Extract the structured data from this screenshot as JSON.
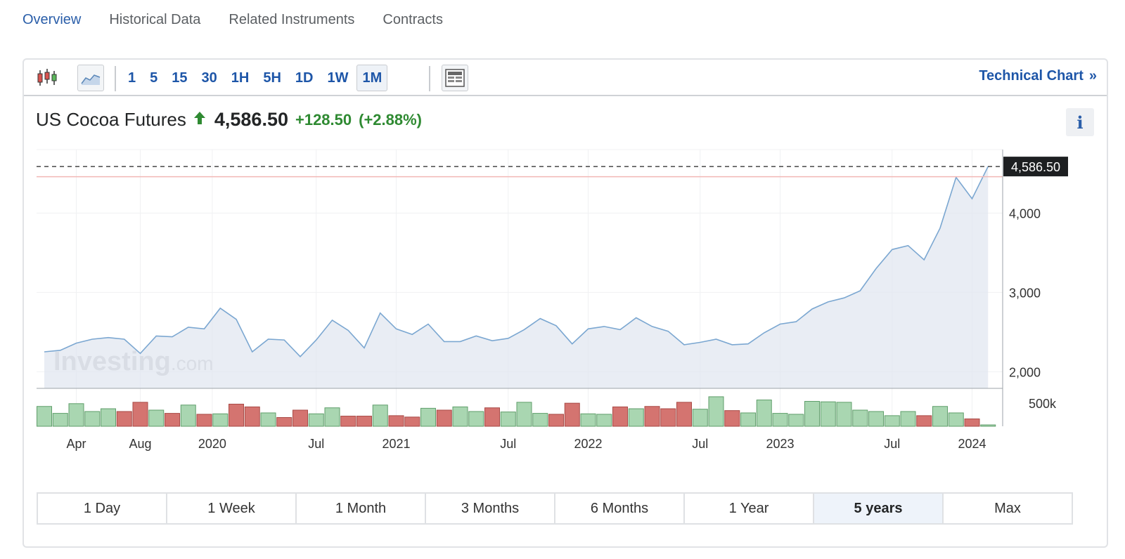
{
  "nav": {
    "tabs": [
      {
        "label": "Overview",
        "active": true
      },
      {
        "label": "Historical Data",
        "active": false
      },
      {
        "label": "Related Instruments",
        "active": false
      },
      {
        "label": "Contracts",
        "active": false
      }
    ]
  },
  "toolbar": {
    "icons": [
      "candlestick-icon",
      "area-chart-icon",
      "chart-layout-icon"
    ],
    "intervals": [
      "1",
      "5",
      "15",
      "30",
      "1H",
      "5H",
      "1D",
      "1W",
      "1M"
    ],
    "active_interval": "1M",
    "technical_chart_label": "Technical Chart",
    "technical_chart_arrow": "»"
  },
  "quote": {
    "name": "US Cocoa Futures",
    "price": "4,586.50",
    "change": "+128.50",
    "change_pct": "(+2.88%)",
    "direction": "up",
    "up_color": "#2f8a32",
    "info_label": "i"
  },
  "watermark": {
    "brand": "Investing",
    "suffix": ".com"
  },
  "chart_data": {
    "type": "area",
    "ylim": [
      1790,
      4800
    ],
    "y_ticks": [
      2000,
      3000,
      4000
    ],
    "y_tick_labels": [
      "2,000",
      "3,000",
      "4,000"
    ],
    "current_price": 4586.5,
    "current_price_label": "4,586.50",
    "reference_price": 4458,
    "x_tick_labels": [
      "Apr",
      "Aug",
      "2020",
      "Jul",
      "2021",
      "Jul",
      "2022",
      "Jul",
      "2023",
      "Jul",
      "2024"
    ],
    "x_tick_index": [
      2,
      6,
      10.5,
      17,
      22,
      29,
      34,
      41,
      46,
      53,
      58
    ],
    "grid": true,
    "series": [
      {
        "values": [
          2250,
          2270,
          2360,
          2410,
          2430,
          2410,
          2230,
          2450,
          2440,
          2560,
          2540,
          2800,
          2660,
          2250,
          2410,
          2400,
          2190,
          2400,
          2650,
          2520,
          2300,
          2740,
          2540,
          2470,
          2600,
          2380,
          2380,
          2450,
          2390,
          2420,
          2530,
          2670,
          2580,
          2350,
          2540,
          2570,
          2530,
          2680,
          2570,
          2510,
          2340,
          2370,
          2410,
          2340,
          2350,
          2490,
          2600,
          2630,
          2790,
          2880,
          2930,
          3020,
          3300,
          3540,
          3590,
          3410,
          3810,
          4450,
          4180,
          4586.5
        ]
      }
    ],
    "volume": {
      "ylim": [
        0,
        700
      ],
      "y_tick": 500,
      "y_tick_label": "500k",
      "values": [
        430,
        280,
        490,
        320,
        380,
        320,
        520,
        350,
        280,
        460,
        260,
        270,
        480,
        420,
        290,
        190,
        350,
        270,
        400,
        220,
        220,
        460,
        230,
        200,
        390,
        350,
        420,
        320,
        400,
        310,
        520,
        280,
        260,
        500,
        270,
        260,
        420,
        380,
        430,
        380,
        520,
        370,
        640,
        340,
        290,
        570,
        280,
        260,
        540,
        530,
        520,
        350,
        320,
        230,
        320,
        230,
        430,
        290,
        160,
        30
      ],
      "up_color": "#a9d6b1",
      "down_color": "#d47470"
    }
  },
  "ranges": {
    "items": [
      "1 Day",
      "1 Week",
      "1 Month",
      "3 Months",
      "6 Months",
      "1 Year",
      "5 years",
      "Max"
    ],
    "active": "5 years"
  }
}
